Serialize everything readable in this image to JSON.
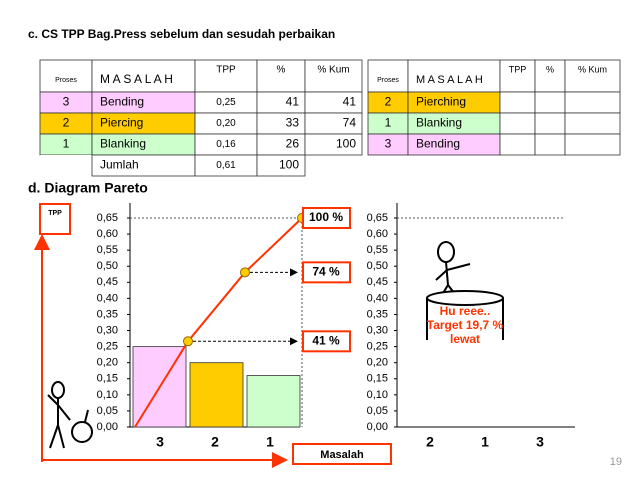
{
  "heading_c": "c.  CS TPP Bag.Press sebelum dan sesudah perbaikan",
  "table_before": {
    "columns": [
      "Proses",
      "M A S A L A H",
      "TPP",
      "%",
      "% Kum"
    ],
    "rows": [
      [
        "3",
        "Bending",
        "0,25",
        "41",
        "41"
      ],
      [
        "2",
        "Piercing",
        "0,20",
        "33",
        "74"
      ],
      [
        "1",
        "Blanking",
        "0,16",
        "26",
        "100"
      ]
    ],
    "total": [
      "Jumlah",
      "0,61",
      "100"
    ]
  },
  "table_after": {
    "columns": [
      "Proses",
      "M A S A L A H",
      "TPP",
      "%",
      "% Kum"
    ],
    "rows": [
      [
        "2",
        "Pierching"
      ],
      [
        "1",
        "Blanking"
      ],
      [
        "3",
        "Bending"
      ]
    ]
  },
  "heading_d": "d.   Diagram Pareto",
  "chart_data": [
    {
      "type": "bar",
      "ylabel": "TPP",
      "xlabel": "Masalah",
      "categories": [
        "3",
        "2",
        "1"
      ],
      "values": [
        0.25,
        0.2,
        0.16
      ],
      "colors": [
        "#ffccff",
        "#ffcc00",
        "#ccffcc"
      ],
      "cumulative": {
        "values": [
          41,
          74,
          100
        ],
        "value_labels": [
          "41 %",
          "74 %",
          "100 %"
        ],
        "axis": "y2",
        "color": "#ffcc00",
        "line_color": "#ff3300"
      },
      "ylim": [
        0,
        0.65
      ],
      "y2lim": [
        0,
        100
      ],
      "yticks": [
        {
          "value": 0,
          "label": "0,00"
        },
        {
          "value": 0.05,
          "label": "0,05"
        },
        {
          "value": 0.1,
          "label": "0,10"
        },
        {
          "value": 0.15,
          "label": "0,15"
        },
        {
          "value": 0.2,
          "label": "0,20"
        },
        {
          "value": 0.25,
          "label": "0,25"
        },
        {
          "value": 0.3,
          "label": "0,30"
        },
        {
          "value": 0.35,
          "label": "0,35"
        },
        {
          "value": 0.4,
          "label": "0,40"
        },
        {
          "value": 0.45,
          "label": "0,45"
        },
        {
          "value": 0.5,
          "label": "0,50"
        },
        {
          "value": 0.55,
          "label": "0,55"
        },
        {
          "value": 0.6,
          "label": "0,60"
        },
        {
          "value": 0.65,
          "label": "0,65"
        }
      ]
    },
    {
      "type": "bar",
      "categories": [
        "2",
        "1",
        "3"
      ],
      "annotation": [
        "Hu reee..",
        "Target 19,7 %",
        "lewat"
      ],
      "ylim": [
        0,
        0.65
      ],
      "yticks": [
        {
          "value": 0,
          "label": "0,00"
        },
        {
          "value": 0.05,
          "label": "0,05"
        },
        {
          "value": 0.1,
          "label": "0,10"
        },
        {
          "value": 0.15,
          "label": "0,15"
        },
        {
          "value": 0.2,
          "label": "0,20"
        },
        {
          "value": 0.25,
          "label": "0,25"
        },
        {
          "value": 0.3,
          "label": "0,30"
        },
        {
          "value": 0.35,
          "label": "0,35"
        },
        {
          "value": 0.4,
          "label": "0,40"
        },
        {
          "value": 0.45,
          "label": "0,45"
        },
        {
          "value": 0.5,
          "label": "0,50"
        },
        {
          "value": 0.55,
          "label": "0,55"
        },
        {
          "value": 0.6,
          "label": "0,60"
        },
        {
          "value": 0.65,
          "label": "0,65"
        }
      ]
    }
  ],
  "page_number": "19"
}
